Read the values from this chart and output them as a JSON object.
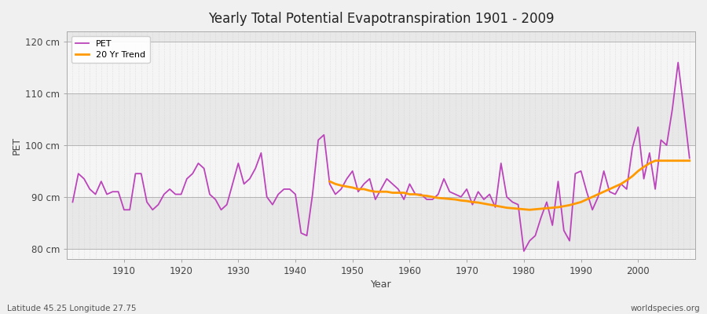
{
  "title": "Yearly Total Potential Evapotranspiration 1901 - 2009",
  "xlabel": "Year",
  "ylabel": "PET",
  "footnote_left": "Latitude 45.25 Longitude 27.75",
  "footnote_right": "worldspecies.org",
  "ylim": [
    78,
    122
  ],
  "yticks": [
    80,
    90,
    100,
    110,
    120
  ],
  "ytick_labels": [
    "80 cm",
    "90 cm",
    "100 cm",
    "110 cm",
    "120 cm"
  ],
  "xlim": [
    1900,
    2010
  ],
  "xticks": [
    1910,
    1920,
    1930,
    1940,
    1950,
    1960,
    1970,
    1980,
    1990,
    2000
  ],
  "pet_color": "#bb44bb",
  "trend_color": "#ff9900",
  "bg_color": "#f0f0f0",
  "plot_bg_color": "#f5f5f5",
  "band_light": "#f5f5f5",
  "band_dark": "#e8e8e8",
  "grid_color": "#cccccc",
  "pet_years": [
    1901,
    1902,
    1903,
    1904,
    1905,
    1906,
    1907,
    1908,
    1909,
    1910,
    1911,
    1912,
    1913,
    1914,
    1915,
    1916,
    1917,
    1918,
    1919,
    1920,
    1921,
    1922,
    1923,
    1924,
    1925,
    1926,
    1927,
    1928,
    1929,
    1930,
    1931,
    1932,
    1933,
    1934,
    1935,
    1936,
    1937,
    1938,
    1939,
    1940,
    1941,
    1942,
    1943,
    1944,
    1945,
    1946,
    1947,
    1948,
    1949,
    1950,
    1951,
    1952,
    1953,
    1954,
    1955,
    1956,
    1957,
    1958,
    1959,
    1960,
    1961,
    1962,
    1963,
    1964,
    1965,
    1966,
    1967,
    1968,
    1969,
    1970,
    1971,
    1972,
    1973,
    1974,
    1975,
    1976,
    1977,
    1978,
    1979,
    1980,
    1981,
    1982,
    1983,
    1984,
    1985,
    1986,
    1987,
    1988,
    1989,
    1990,
    1991,
    1992,
    1993,
    1994,
    1995,
    1996,
    1997,
    1998,
    1999,
    2000,
    2001,
    2002,
    2003,
    2004,
    2005,
    2006,
    2007,
    2008,
    2009
  ],
  "pet_values": [
    89.0,
    94.5,
    93.5,
    91.5,
    90.5,
    93.0,
    90.5,
    91.0,
    91.0,
    87.5,
    87.5,
    94.5,
    94.5,
    89.0,
    87.5,
    88.5,
    90.5,
    91.5,
    90.5,
    90.5,
    93.5,
    94.5,
    96.5,
    95.5,
    90.5,
    89.5,
    87.5,
    88.5,
    92.5,
    96.5,
    92.5,
    93.5,
    95.5,
    98.5,
    90.0,
    88.5,
    90.5,
    91.5,
    91.5,
    90.5,
    83.0,
    82.5,
    90.5,
    101.0,
    102.0,
    92.5,
    90.5,
    91.5,
    93.5,
    95.0,
    91.0,
    92.5,
    93.5,
    89.5,
    91.5,
    93.5,
    92.5,
    91.5,
    89.5,
    92.5,
    90.5,
    90.5,
    89.5,
    89.5,
    90.5,
    93.5,
    91.0,
    90.5,
    90.0,
    91.5,
    88.5,
    91.0,
    89.5,
    90.5,
    88.0,
    96.5,
    90.0,
    89.0,
    88.5,
    79.5,
    81.5,
    82.5,
    86.0,
    89.0,
    84.5,
    93.0,
    83.5,
    81.5,
    94.5,
    95.0,
    91.0,
    87.5,
    90.0,
    95.0,
    91.0,
    90.5,
    92.5,
    91.5,
    99.5,
    103.5,
    93.5,
    98.5,
    91.5,
    101.0,
    100.0,
    107.0,
    116.0,
    107.0,
    97.5
  ],
  "trend_years": [
    1946,
    1947,
    1948,
    1949,
    1950,
    1951,
    1952,
    1953,
    1954,
    1955,
    1956,
    1957,
    1958,
    1959,
    1960,
    1961,
    1962,
    1963,
    1964,
    1965,
    1966,
    1967,
    1968,
    1969,
    1970,
    1971,
    1972,
    1973,
    1974,
    1975,
    1976,
    1977,
    1978,
    1979,
    1980,
    1981,
    1982,
    1983,
    1984,
    1985,
    1986,
    1987,
    1988,
    1989,
    1990,
    1991,
    1992,
    1993,
    1994,
    1995,
    1996,
    1997,
    1998,
    1999,
    2000,
    2001,
    2002,
    2003,
    2004,
    2005,
    2006,
    2007,
    2008,
    2009
  ],
  "trend_values": [
    93.0,
    92.5,
    92.2,
    92.0,
    91.8,
    91.5,
    91.5,
    91.2,
    91.0,
    91.0,
    91.0,
    90.8,
    90.8,
    90.8,
    90.5,
    90.5,
    90.3,
    90.2,
    90.0,
    89.8,
    89.7,
    89.6,
    89.5,
    89.3,
    89.2,
    89.0,
    88.9,
    88.7,
    88.5,
    88.3,
    88.1,
    87.9,
    87.8,
    87.7,
    87.6,
    87.5,
    87.6,
    87.7,
    87.8,
    87.9,
    88.0,
    88.2,
    88.4,
    88.7,
    89.0,
    89.5,
    90.0,
    90.5,
    91.0,
    91.5,
    92.0,
    92.5,
    93.2,
    94.0,
    95.0,
    95.8,
    96.5,
    97.0,
    97.0,
    97.0,
    97.0,
    97.0,
    97.0,
    97.0
  ]
}
